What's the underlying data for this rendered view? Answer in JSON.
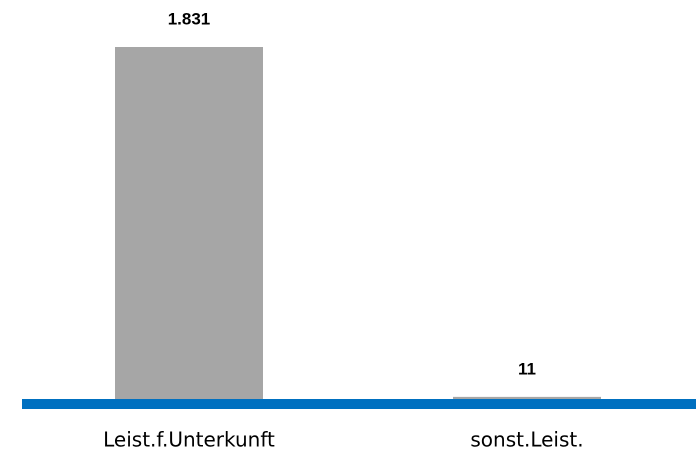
{
  "chart_data": {
    "type": "bar",
    "categories": [
      "Leist.f.Unterkunft",
      "sonst.Leist."
    ],
    "values": [
      1831,
      11
    ],
    "value_labels": [
      "1.831",
      "11"
    ],
    "color": "#a6a6a6",
    "axis_color": "#0070c0"
  }
}
